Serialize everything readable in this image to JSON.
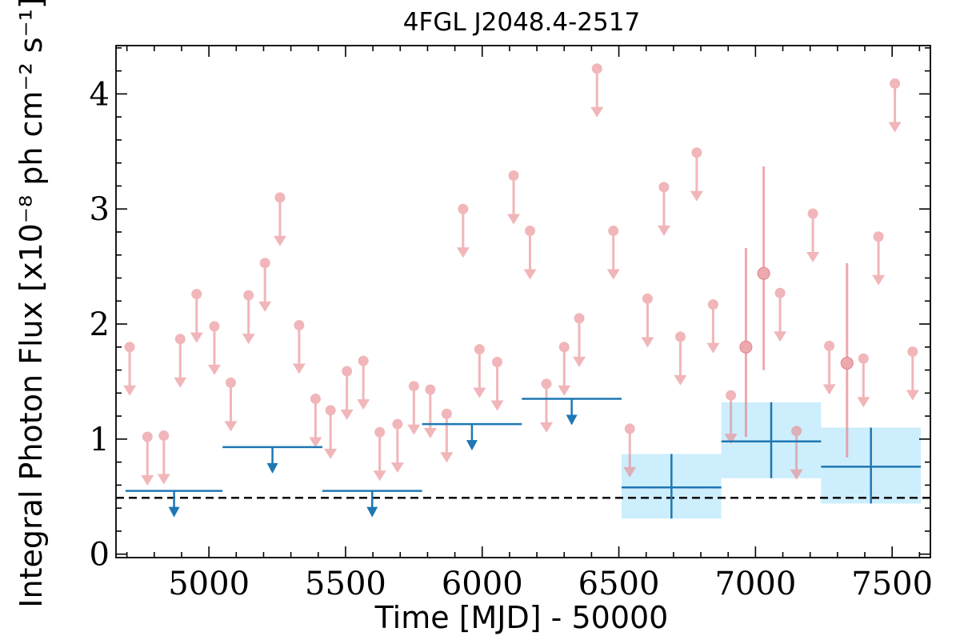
{
  "chart_data": {
    "type": "scatter",
    "title": "4FGL J2048.4-2517",
    "xlabel": "Time [MJD] - 50000",
    "ylabel": "Integral Photon Flux [x10⁻⁸ ph cm⁻² s⁻¹]",
    "xlim": [
      4660,
      7640
    ],
    "ylim": [
      -0.03,
      4.42
    ],
    "xticks": [
      5000,
      5500,
      6000,
      6500,
      7000,
      7500
    ],
    "xtick_labels": [
      "5000",
      "5500",
      "6000",
      "6500",
      "7000",
      "7500"
    ],
    "yticks": [
      0,
      1,
      2,
      3,
      4
    ],
    "ytick_labels": [
      "0",
      "1",
      "2",
      "3",
      "4"
    ],
    "grid": false,
    "legend": "none",
    "reference_line": {
      "y": 0.49,
      "style": "dashed",
      "color": "#000000"
    },
    "colors": {
      "fine": "#e8868c",
      "coarse": "#1f77b4",
      "band": "#cdeefc"
    },
    "series": [
      {
        "kind": "upper_limits",
        "points": [
          {
            "x": 4710,
            "y": 1.8
          },
          {
            "x": 4775,
            "y": 1.02
          },
          {
            "x": 4835,
            "y": 1.03
          },
          {
            "x": 4895,
            "y": 1.87
          },
          {
            "x": 4955,
            "y": 2.26
          },
          {
            "x": 5020,
            "y": 1.98
          },
          {
            "x": 5080,
            "y": 1.49
          },
          {
            "x": 5145,
            "y": 2.25
          },
          {
            "x": 5205,
            "y": 2.53
          },
          {
            "x": 5260,
            "y": 3.1
          },
          {
            "x": 5330,
            "y": 1.99
          },
          {
            "x": 5390,
            "y": 1.35
          },
          {
            "x": 5445,
            "y": 1.25
          },
          {
            "x": 5505,
            "y": 1.59
          },
          {
            "x": 5565,
            "y": 1.68
          },
          {
            "x": 5625,
            "y": 1.06
          },
          {
            "x": 5690,
            "y": 1.13
          },
          {
            "x": 5750,
            "y": 1.46
          },
          {
            "x": 5810,
            "y": 1.43
          },
          {
            "x": 5870,
            "y": 1.22
          },
          {
            "x": 5930,
            "y": 3.0
          },
          {
            "x": 5990,
            "y": 1.78
          },
          {
            "x": 6055,
            "y": 1.67
          },
          {
            "x": 6115,
            "y": 3.29
          },
          {
            "x": 6175,
            "y": 2.81
          },
          {
            "x": 6235,
            "y": 1.48
          },
          {
            "x": 6300,
            "y": 1.8
          },
          {
            "x": 6355,
            "y": 2.05
          },
          {
            "x": 6420,
            "y": 4.22
          },
          {
            "x": 6480,
            "y": 2.81
          },
          {
            "x": 6540,
            "y": 1.09
          },
          {
            "x": 6605,
            "y": 2.22
          },
          {
            "x": 6665,
            "y": 3.19
          },
          {
            "x": 6725,
            "y": 1.89
          },
          {
            "x": 6785,
            "y": 3.49
          },
          {
            "x": 6845,
            "y": 2.17
          },
          {
            "x": 6910,
            "y": 1.38
          },
          {
            "x": 7090,
            "y": 2.27
          },
          {
            "x": 7150,
            "y": 1.07
          },
          {
            "x": 7210,
            "y": 2.96
          },
          {
            "x": 7270,
            "y": 1.81
          },
          {
            "x": 7395,
            "y": 1.7
          },
          {
            "x": 7450,
            "y": 2.76
          },
          {
            "x": 7510,
            "y": 4.09
          },
          {
            "x": 7575,
            "y": 1.76
          }
        ]
      },
      {
        "kind": "detections",
        "points": [
          {
            "x": 6965,
            "y": 1.8,
            "ylow": 1.02,
            "yhigh": 2.66
          },
          {
            "x": 7030,
            "y": 2.44,
            "ylow": 1.6,
            "yhigh": 3.37
          },
          {
            "x": 7335,
            "y": 1.66,
            "ylow": 0.84,
            "yhigh": 2.53
          }
        ]
      },
      {
        "kind": "coarse_upper_limits",
        "bins": [
          {
            "x0": 4695,
            "x1": 5050,
            "y": 0.55
          },
          {
            "x0": 5050,
            "x1": 5415,
            "y": 0.93
          },
          {
            "x0": 5415,
            "x1": 5780,
            "y": 0.55
          },
          {
            "x0": 5780,
            "x1": 6145,
            "y": 1.13
          },
          {
            "x0": 6145,
            "x1": 6510,
            "y": 1.35
          }
        ]
      },
      {
        "kind": "coarse_detections",
        "bins": [
          {
            "x0": 6510,
            "x1": 6875,
            "y": 0.58,
            "ylow": 0.31,
            "yhigh": 0.87
          },
          {
            "x0": 6875,
            "x1": 7240,
            "y": 0.98,
            "ylow": 0.66,
            "yhigh": 1.32
          },
          {
            "x0": 7240,
            "x1": 7605,
            "y": 0.76,
            "ylow": 0.44,
            "yhigh": 1.1
          }
        ]
      }
    ]
  }
}
